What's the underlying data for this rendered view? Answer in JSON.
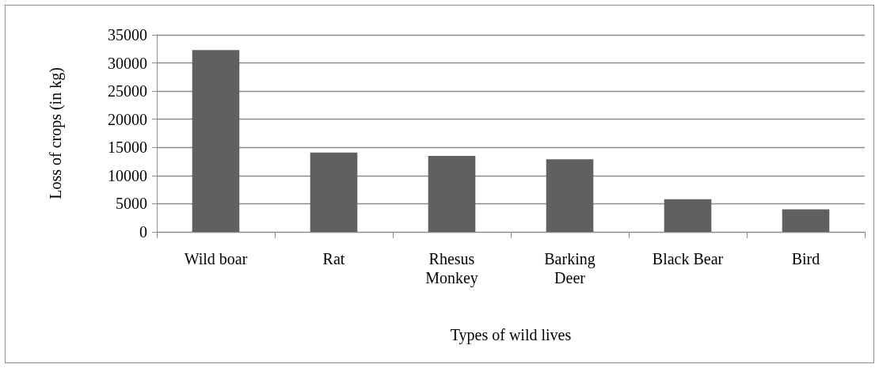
{
  "chart_data": {
    "type": "bar",
    "xlabel": "Types of wild lives",
    "ylabel": "Loss of crops (in kg)",
    "categories": [
      "Wild boar",
      "Rat",
      "Rhesus Monkey",
      "Barking Deer",
      "Black Bear",
      "Bird"
    ],
    "values": [
      32300,
      14100,
      13500,
      12900,
      5800,
      4000
    ],
    "color": "#606060",
    "ylim": [
      0,
      35000
    ],
    "yticks": [
      0,
      5000,
      10000,
      15000,
      20000,
      25000,
      30000,
      35000
    ],
    "grid": "y"
  }
}
